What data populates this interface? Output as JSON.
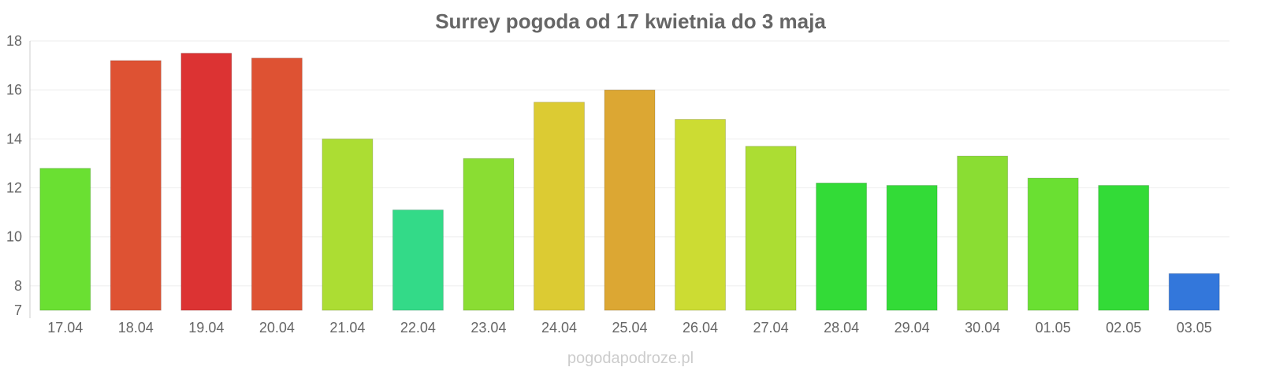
{
  "chart_data": {
    "type": "bar",
    "title": "Surrey pogoda od 17 kwietnia do 3 maja",
    "xlabel": "",
    "ylabel": "",
    "ylim": [
      7,
      18
    ],
    "yticks": [
      7,
      8,
      10,
      12,
      14,
      16,
      18
    ],
    "grid": true,
    "categories": [
      "17.04",
      "18.04",
      "19.04",
      "20.04",
      "21.04",
      "22.04",
      "23.04",
      "24.04",
      "25.04",
      "26.04",
      "27.04",
      "28.04",
      "29.04",
      "30.04",
      "01.05",
      "02.05",
      "03.05"
    ],
    "values": [
      12.8,
      17.2,
      17.5,
      17.3,
      14.0,
      11.1,
      13.2,
      15.5,
      16.0,
      14.8,
      13.7,
      12.2,
      12.1,
      13.3,
      12.4,
      12.1,
      8.5
    ],
    "colors": [
      "#6ae032",
      "#de5233",
      "#dc3333",
      "#de5233",
      "#acdd33",
      "#33da88",
      "#8add33",
      "#dccb33",
      "#dca733",
      "#ccdc33",
      "#acdd33",
      "#33db37",
      "#33db37",
      "#8add33",
      "#6ae032",
      "#33db37",
      "#3377db"
    ]
  },
  "watermark": "pogodapodroze.pl"
}
